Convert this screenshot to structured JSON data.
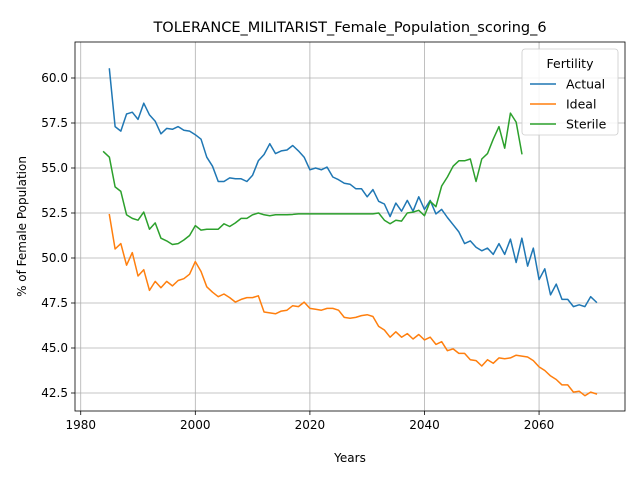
{
  "chart_data": {
    "type": "line",
    "title": "TOLERANCE_MILITARIST_Female_Population_scoring_6",
    "xlabel": "Years",
    "ylabel": "% of Female Population",
    "xlim": [
      1979,
      2075
    ],
    "ylim": [
      41.5,
      62.0
    ],
    "xticks": [
      1980,
      2000,
      2020,
      2040,
      2060
    ],
    "yticks": [
      42.5,
      45.0,
      47.5,
      50.0,
      52.5,
      55.0,
      57.5,
      60.0
    ],
    "grid": true,
    "legend": {
      "title": "Fertility",
      "placement": "top-right"
    },
    "colors": {
      "Actual": "#1f77b4",
      "Ideal": "#ff7f0e",
      "Sterile": "#2ca02c"
    },
    "series": [
      {
        "name": "Actual",
        "x": [
          1985,
          1986,
          1987,
          1988,
          1989,
          1990,
          1991,
          1992,
          1993,
          1994,
          1995,
          1996,
          1997,
          1998,
          1999,
          2000,
          2001,
          2002,
          2003,
          2004,
          2005,
          2006,
          2007,
          2008,
          2009,
          2010,
          2011,
          2012,
          2013,
          2014,
          2015,
          2016,
          2017,
          2018,
          2019,
          2020,
          2021,
          2022,
          2023,
          2024,
          2025,
          2026,
          2027,
          2028,
          2029,
          2030,
          2031,
          2032,
          2033,
          2034,
          2035,
          2036,
          2037,
          2038,
          2039,
          2040,
          2041,
          2042,
          2043,
          2044,
          2045,
          2046,
          2047,
          2048,
          2049,
          2050,
          2051,
          2052,
          2053,
          2054,
          2055,
          2056,
          2057,
          2058,
          2059,
          2060,
          2061,
          2062,
          2063,
          2064,
          2065,
          2066,
          2067,
          2068,
          2069,
          2070
        ],
        "values": [
          60.5,
          57.3,
          57.05,
          58.0,
          58.1,
          57.7,
          58.6,
          57.95,
          57.6,
          56.9,
          57.2,
          57.15,
          57.3,
          57.1,
          57.05,
          56.85,
          56.6,
          55.6,
          55.1,
          54.25,
          54.25,
          54.45,
          54.4,
          54.4,
          54.25,
          54.6,
          55.4,
          55.75,
          56.35,
          55.8,
          55.95,
          56.0,
          56.25,
          55.95,
          55.6,
          54.9,
          55.0,
          54.9,
          55.05,
          54.5,
          54.35,
          54.15,
          54.1,
          53.85,
          53.85,
          53.4,
          53.8,
          53.15,
          53.0,
          52.3,
          53.05,
          52.6,
          53.2,
          52.6,
          53.4,
          52.7,
          53.2,
          52.45,
          52.7,
          52.25,
          51.85,
          51.45,
          50.8,
          50.95,
          50.6,
          50.4,
          50.55,
          50.2,
          50.8,
          50.2,
          51.05,
          49.75,
          51.1,
          49.55,
          50.55,
          48.8,
          49.4,
          47.95,
          48.55,
          47.7,
          47.7,
          47.3,
          47.4,
          47.3,
          47.85,
          47.55
        ]
      },
      {
        "name": "Ideal",
        "x": [
          1985,
          1986,
          1987,
          1988,
          1989,
          1990,
          1991,
          1992,
          1993,
          1994,
          1995,
          1996,
          1997,
          1998,
          1999,
          2000,
          2001,
          2002,
          2003,
          2004,
          2005,
          2006,
          2007,
          2008,
          2009,
          2010,
          2011,
          2012,
          2013,
          2014,
          2015,
          2016,
          2017,
          2018,
          2019,
          2020,
          2021,
          2022,
          2023,
          2024,
          2025,
          2026,
          2027,
          2028,
          2029,
          2030,
          2031,
          2032,
          2033,
          2034,
          2035,
          2036,
          2037,
          2038,
          2039,
          2040,
          2041,
          2042,
          2043,
          2044,
          2045,
          2046,
          2047,
          2048,
          2049,
          2050,
          2051,
          2052,
          2053,
          2054,
          2055,
          2056,
          2057,
          2058,
          2059,
          2060,
          2061,
          2062,
          2063,
          2064,
          2065,
          2066,
          2067,
          2068,
          2069,
          2070
        ],
        "values": [
          52.4,
          50.5,
          50.8,
          49.6,
          50.3,
          49.0,
          49.35,
          48.2,
          48.7,
          48.35,
          48.7,
          48.45,
          48.75,
          48.85,
          49.1,
          49.8,
          49.25,
          48.4,
          48.1,
          47.85,
          48.0,
          47.8,
          47.55,
          47.7,
          47.8,
          47.8,
          47.9,
          47.0,
          46.95,
          46.9,
          47.05,
          47.1,
          47.35,
          47.3,
          47.55,
          47.2,
          47.15,
          47.1,
          47.2,
          47.2,
          47.1,
          46.7,
          46.65,
          46.7,
          46.8,
          46.85,
          46.75,
          46.2,
          46.0,
          45.6,
          45.9,
          45.6,
          45.8,
          45.5,
          45.75,
          45.45,
          45.6,
          45.2,
          45.35,
          44.85,
          44.95,
          44.7,
          44.7,
          44.35,
          44.3,
          44.0,
          44.35,
          44.15,
          44.45,
          44.4,
          44.45,
          44.6,
          44.55,
          44.5,
          44.3,
          43.95,
          43.75,
          43.45,
          43.25,
          42.95,
          42.95,
          42.55,
          42.6,
          42.35,
          42.55,
          42.45
        ]
      },
      {
        "name": "Sterile",
        "x": [
          1984,
          1985,
          1986,
          1987,
          1988,
          1989,
          1990,
          1991,
          1992,
          1993,
          1994,
          1995,
          1996,
          1997,
          1998,
          1999,
          2000,
          2001,
          2002,
          2003,
          2004,
          2005,
          2006,
          2007,
          2008,
          2009,
          2010,
          2011,
          2012,
          2013,
          2014,
          2015,
          2016,
          2017,
          2018,
          2019,
          2020,
          2021,
          2022,
          2023,
          2024,
          2025,
          2026,
          2027,
          2028,
          2029,
          2030,
          2031,
          2032,
          2033,
          2034,
          2035,
          2036,
          2037,
          2038,
          2039,
          2040,
          2041,
          2042,
          2043,
          2044,
          2045,
          2046,
          2047,
          2048,
          2049,
          2050,
          2051,
          2052,
          2053,
          2054,
          2055,
          2056,
          2057
        ],
        "values": [
          55.9,
          55.6,
          53.95,
          53.7,
          52.4,
          52.2,
          52.1,
          52.55,
          51.6,
          51.95,
          51.1,
          50.95,
          50.75,
          50.8,
          51.0,
          51.25,
          51.8,
          51.55,
          51.6,
          51.6,
          51.6,
          51.9,
          51.75,
          51.95,
          52.2,
          52.2,
          52.4,
          52.5,
          52.4,
          52.35,
          52.4,
          52.4,
          52.4,
          52.42,
          52.45,
          52.45,
          52.45,
          52.45,
          52.45,
          52.45,
          52.45,
          52.45,
          52.45,
          52.45,
          52.45,
          52.45,
          52.45,
          52.45,
          52.5,
          52.1,
          51.9,
          52.1,
          52.05,
          52.5,
          52.55,
          52.65,
          52.35,
          53.15,
          52.85,
          54.0,
          54.5,
          55.1,
          55.4,
          55.4,
          55.5,
          54.25,
          55.5,
          55.8,
          56.6,
          57.3,
          56.1,
          58.05,
          57.55,
          55.8
        ]
      }
    ]
  }
}
